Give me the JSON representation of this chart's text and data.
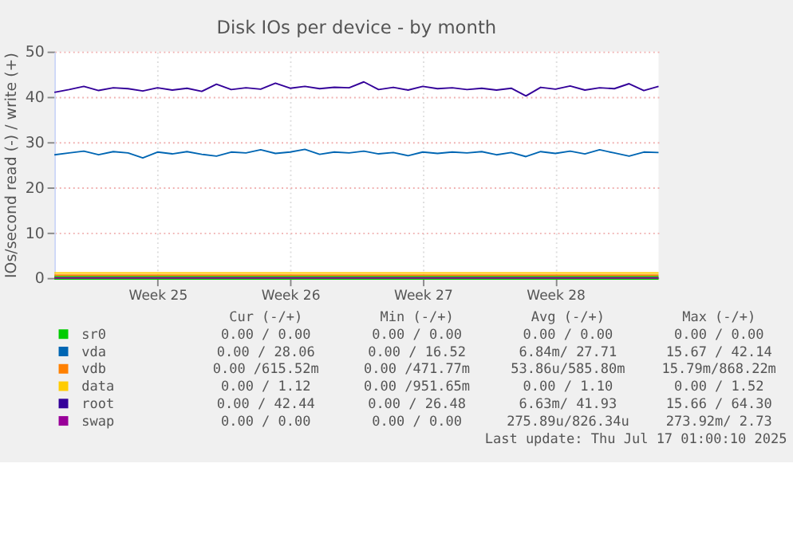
{
  "chart_data": {
    "type": "line",
    "title": "Disk IOs per device - by month",
    "ylabel": "IOs/second read (-) / write (+)",
    "categories": [
      null,
      null,
      null,
      null,
      null,
      null,
      null,
      "Week 25",
      null,
      null,
      null,
      null,
      null,
      null,
      null,
      null,
      "Week 26",
      null,
      null,
      null,
      null,
      null,
      null,
      null,
      null,
      "Week 27",
      null,
      null,
      null,
      null,
      null,
      null,
      null,
      null,
      "Week 28",
      null,
      null,
      null,
      null,
      null,
      null,
      null
    ],
    "ylim": [
      0,
      50
    ],
    "yticks": [
      0,
      10,
      20,
      30,
      40,
      50
    ],
    "grid": true,
    "legend": "bottom",
    "series": [
      {
        "name": "sr0",
        "color": "#00cc00",
        "values": [
          0,
          0,
          0,
          0,
          0,
          0,
          0,
          0,
          0,
          0,
          0,
          0,
          0,
          0,
          0,
          0,
          0,
          0,
          0,
          0,
          0,
          0,
          0,
          0,
          0,
          0,
          0,
          0,
          0,
          0,
          0,
          0,
          0,
          0,
          0,
          0,
          0,
          0,
          0,
          0,
          0,
          0
        ]
      },
      {
        "name": "vda",
        "color": "#0066b3",
        "values": [
          27.2,
          27.6,
          28.0,
          27.2,
          27.9,
          27.6,
          26.5,
          27.8,
          27.4,
          27.9,
          27.3,
          26.9,
          27.8,
          27.6,
          28.3,
          27.5,
          27.8,
          28.4,
          27.3,
          27.8,
          27.6,
          28.0,
          27.4,
          27.7,
          27.0,
          27.8,
          27.5,
          27.8,
          27.6,
          27.9,
          27.2,
          27.7,
          26.8,
          27.9,
          27.5,
          28.0,
          27.4,
          28.3,
          27.6,
          26.9,
          27.8,
          27.7
        ]
      },
      {
        "name": "vdb",
        "color": "#ff8000",
        "values": [
          0.6,
          0.6,
          0.6,
          0.6,
          0.6,
          0.6,
          0.6,
          0.6,
          0.6,
          0.6,
          0.6,
          0.6,
          0.6,
          0.6,
          0.6,
          0.6,
          0.6,
          0.6,
          0.6,
          0.6,
          0.6,
          0.6,
          0.6,
          0.6,
          0.6,
          0.6,
          0.6,
          0.6,
          0.6,
          0.6,
          0.6,
          0.6,
          0.6,
          0.6,
          0.6,
          0.6,
          0.6,
          0.6,
          0.6,
          0.6,
          0.6,
          0.6
        ]
      },
      {
        "name": "data",
        "color": "#ffcc00",
        "values": [
          1.1,
          1.1,
          1.1,
          1.1,
          1.1,
          1.1,
          1.1,
          1.1,
          1.1,
          1.1,
          1.1,
          1.1,
          1.1,
          1.1,
          1.1,
          1.1,
          1.1,
          1.1,
          1.1,
          1.1,
          1.1,
          1.1,
          1.1,
          1.1,
          1.1,
          1.1,
          1.1,
          1.1,
          1.1,
          1.1,
          1.1,
          1.1,
          1.1,
          1.1,
          1.1,
          1.1,
          1.1,
          1.1,
          1.1,
          1.1,
          1.1,
          1.1
        ]
      },
      {
        "name": "root",
        "color": "#330099",
        "values": [
          41.0,
          41.6,
          42.3,
          41.4,
          42.0,
          41.8,
          41.3,
          42.0,
          41.5,
          41.9,
          41.2,
          42.8,
          41.6,
          42.0,
          41.7,
          43.0,
          41.9,
          42.3,
          41.8,
          42.1,
          42.0,
          43.3,
          41.6,
          42.1,
          41.5,
          42.3,
          41.8,
          42.0,
          41.6,
          41.9,
          41.5,
          41.9,
          40.2,
          42.1,
          41.7,
          42.4,
          41.5,
          42.0,
          41.8,
          42.9,
          41.4,
          42.3
        ]
      },
      {
        "name": "swap",
        "color": "#990099",
        "values": [
          0,
          0,
          0,
          0,
          0,
          0,
          0,
          0,
          0,
          0,
          0,
          0,
          0,
          0,
          0,
          0,
          0,
          0,
          0,
          0,
          0,
          0,
          0,
          0,
          0,
          0,
          0,
          0,
          0,
          0,
          0,
          0,
          0,
          0,
          0,
          0,
          0,
          0,
          0,
          0,
          0,
          0
        ]
      }
    ],
    "annotations": [
      "Cur (-/+)",
      "Min (-/+)",
      "Avg (-/+)",
      "Max (-/+)",
      "0.00 / 0.00",
      "0.00 / 0.00",
      "0.00 / 0.00",
      "0.00 / 0.00",
      "0.00 / 28.06",
      "0.00 / 16.52",
      "6.84m/ 27.71",
      "15.67 / 42.14",
      "0.00 /615.52m",
      "0.00 /471.77m",
      "53.86u/585.80m",
      "15.79m/868.22m",
      "0.00 / 1.12",
      "0.00 /951.65m",
      "0.00 / 1.10",
      "0.00 / 1.52",
      "0.00 / 42.44",
      "0.00 / 26.48",
      "6.63m/ 41.93",
      "15.66 / 64.30",
      "0.00 / 0.00",
      "0.00 / 0.00",
      "275.89u/826.34u",
      "273.92m/ 2.73",
      "Last update: Thu Jul 17 01:00:10 2025"
    ]
  }
}
